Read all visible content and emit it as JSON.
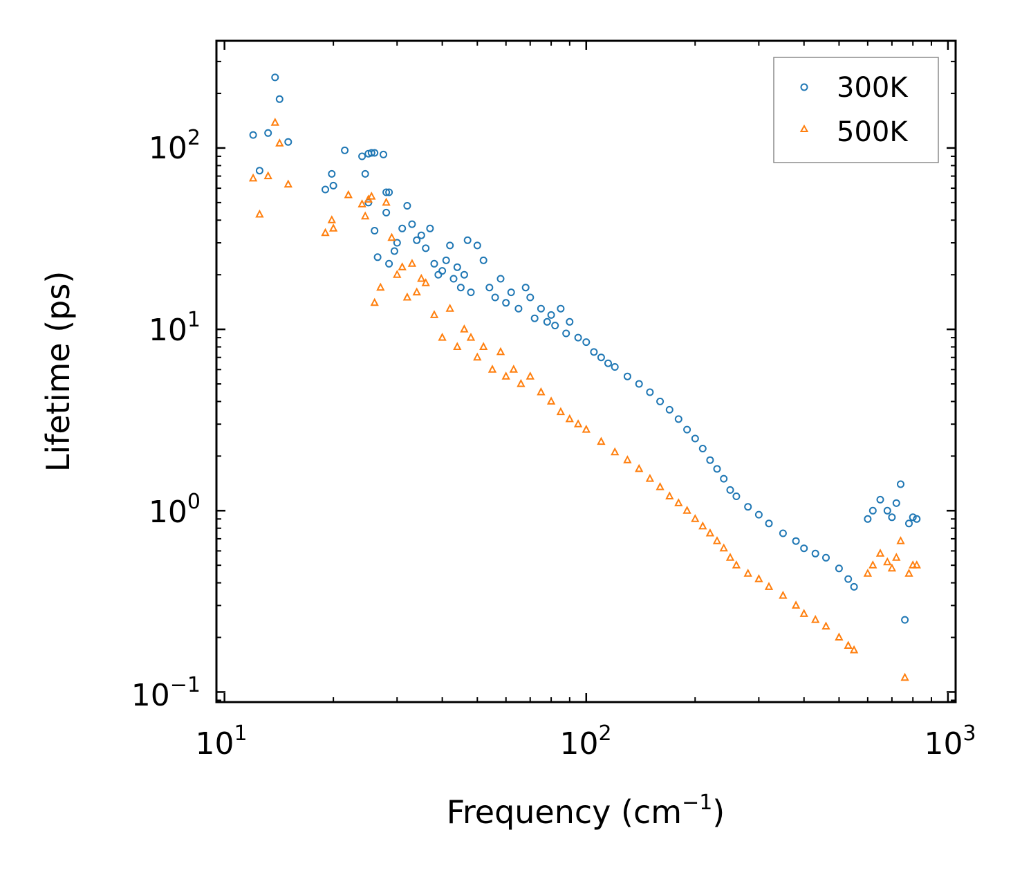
{
  "chart_data": {
    "type": "scatter",
    "title": "",
    "xlabel": "Frequency (cm",
    "xlabel_sup": "−1",
    "xlabel_end": ")",
    "ylabel": "Lifetime (ps)",
    "xscale": "log",
    "yscale": "log",
    "xlim": [
      9.5,
      1050
    ],
    "ylim": [
      0.088,
      390
    ],
    "xticks": [
      {
        "value": 10,
        "base": "10",
        "exp": "1"
      },
      {
        "value": 100,
        "base": "10",
        "exp": "2"
      },
      {
        "value": 1000,
        "base": "10",
        "exp": "3"
      }
    ],
    "yticks": [
      {
        "value": 0.1,
        "base": "10",
        "exp": "−1"
      },
      {
        "value": 1,
        "base": "10",
        "exp": "0"
      },
      {
        "value": 10,
        "base": "10",
        "exp": "1"
      },
      {
        "value": 100,
        "base": "10",
        "exp": "2"
      }
    ],
    "legend_position": "top-right",
    "series": [
      {
        "name": "300K",
        "marker": "circle",
        "color": "#1f77b4",
        "points": [
          [
            12.0,
            118
          ],
          [
            12.5,
            75
          ],
          [
            13.2,
            121
          ],
          [
            13.8,
            245
          ],
          [
            14.2,
            186
          ],
          [
            15.0,
            108
          ],
          [
            19.0,
            59
          ],
          [
            19.8,
            72
          ],
          [
            20.0,
            62
          ],
          [
            21.5,
            97
          ],
          [
            24.0,
            90
          ],
          [
            24.5,
            72
          ],
          [
            25.0,
            93
          ],
          [
            25.5,
            94
          ],
          [
            26.0,
            94
          ],
          [
            27.5,
            92
          ],
          [
            28.0,
            57
          ],
          [
            28.5,
            57
          ],
          [
            25.0,
            50
          ],
          [
            26.0,
            35
          ],
          [
            26.5,
            25
          ],
          [
            28.0,
            44
          ],
          [
            28.5,
            23
          ],
          [
            29.5,
            27
          ],
          [
            30.0,
            30
          ],
          [
            31.0,
            36
          ],
          [
            32.0,
            48
          ],
          [
            33.0,
            38
          ],
          [
            34.0,
            31
          ],
          [
            35.0,
            33
          ],
          [
            36.0,
            28
          ],
          [
            37.0,
            36
          ],
          [
            38.0,
            23
          ],
          [
            39.0,
            20
          ],
          [
            40.0,
            21
          ],
          [
            41.0,
            24
          ],
          [
            42.0,
            29
          ],
          [
            43.0,
            19
          ],
          [
            44.0,
            22
          ],
          [
            45.0,
            17
          ],
          [
            46.0,
            20
          ],
          [
            47.0,
            31
          ],
          [
            48.0,
            16
          ],
          [
            50.0,
            29
          ],
          [
            52.0,
            24
          ],
          [
            54.0,
            17
          ],
          [
            56.0,
            15
          ],
          [
            58.0,
            19
          ],
          [
            60.0,
            14
          ],
          [
            62.0,
            16
          ],
          [
            65.0,
            13
          ],
          [
            68.0,
            17
          ],
          [
            70.0,
            15
          ],
          [
            72.0,
            11.5
          ],
          [
            75.0,
            13
          ],
          [
            78.0,
            11
          ],
          [
            80.0,
            12
          ],
          [
            82.0,
            10.5
          ],
          [
            85.0,
            13
          ],
          [
            88.0,
            9.5
          ],
          [
            90.0,
            11
          ],
          [
            95.0,
            9
          ],
          [
            100.0,
            8.5
          ],
          [
            105.0,
            7.5
          ],
          [
            110.0,
            7
          ],
          [
            115.0,
            6.5
          ],
          [
            120.0,
            6.2
          ],
          [
            130.0,
            5.5
          ],
          [
            140.0,
            5
          ],
          [
            150.0,
            4.5
          ],
          [
            160.0,
            4.0
          ],
          [
            170.0,
            3.6
          ],
          [
            180.0,
            3.2
          ],
          [
            190.0,
            2.8
          ],
          [
            200.0,
            2.5
          ],
          [
            210.0,
            2.2
          ],
          [
            220.0,
            1.9
          ],
          [
            230.0,
            1.7
          ],
          [
            240.0,
            1.5
          ],
          [
            250.0,
            1.3
          ],
          [
            260.0,
            1.2
          ],
          [
            280.0,
            1.05
          ],
          [
            300.0,
            0.95
          ],
          [
            320.0,
            0.85
          ],
          [
            350.0,
            0.75
          ],
          [
            380.0,
            0.68
          ],
          [
            400.0,
            0.62
          ],
          [
            430.0,
            0.58
          ],
          [
            460.0,
            0.55
          ],
          [
            500.0,
            0.48
          ],
          [
            530.0,
            0.42
          ],
          [
            550.0,
            0.38
          ],
          [
            600.0,
            0.9
          ],
          [
            620.0,
            1.0
          ],
          [
            650.0,
            1.15
          ],
          [
            680.0,
            1.0
          ],
          [
            700.0,
            0.92
          ],
          [
            720.0,
            1.1
          ],
          [
            740.0,
            1.4
          ],
          [
            760.0,
            0.25
          ],
          [
            780.0,
            0.85
          ],
          [
            800.0,
            0.92
          ],
          [
            820.0,
            0.9
          ]
        ]
      },
      {
        "name": "500K",
        "marker": "triangle",
        "color": "#ff7f0e",
        "points": [
          [
            12.0,
            68
          ],
          [
            12.5,
            43
          ],
          [
            13.2,
            70
          ],
          [
            13.8,
            138
          ],
          [
            14.2,
            106
          ],
          [
            15.0,
            63
          ],
          [
            19.0,
            34
          ],
          [
            19.8,
            40
          ],
          [
            20.0,
            36
          ],
          [
            22.0,
            55
          ],
          [
            24.0,
            49
          ],
          [
            24.5,
            42
          ],
          [
            25.0,
            52
          ],
          [
            25.5,
            54
          ],
          [
            26.0,
            14
          ],
          [
            27.0,
            17
          ],
          [
            28.0,
            50
          ],
          [
            29.0,
            32
          ],
          [
            30.0,
            20
          ],
          [
            31.0,
            22
          ],
          [
            32.0,
            15
          ],
          [
            33.0,
            23
          ],
          [
            34.0,
            16
          ],
          [
            35.0,
            19
          ],
          [
            36.0,
            18
          ],
          [
            38.0,
            12
          ],
          [
            40.0,
            9
          ],
          [
            42.0,
            13
          ],
          [
            44.0,
            8
          ],
          [
            46.0,
            10
          ],
          [
            48.0,
            9
          ],
          [
            50.0,
            7
          ],
          [
            52.0,
            8
          ],
          [
            55.0,
            6
          ],
          [
            58.0,
            7.5
          ],
          [
            60.0,
            5.5
          ],
          [
            63.0,
            6
          ],
          [
            66.0,
            5
          ],
          [
            70.0,
            5.5
          ],
          [
            75.0,
            4.5
          ],
          [
            80.0,
            4
          ],
          [
            85.0,
            3.5
          ],
          [
            90.0,
            3.2
          ],
          [
            95.0,
            3.0
          ],
          [
            100.0,
            2.8
          ],
          [
            110.0,
            2.4
          ],
          [
            120.0,
            2.1
          ],
          [
            130.0,
            1.9
          ],
          [
            140.0,
            1.7
          ],
          [
            150.0,
            1.5
          ],
          [
            160.0,
            1.35
          ],
          [
            170.0,
            1.2
          ],
          [
            180.0,
            1.1
          ],
          [
            190.0,
            1.0
          ],
          [
            200.0,
            0.9
          ],
          [
            210.0,
            0.82
          ],
          [
            220.0,
            0.75
          ],
          [
            230.0,
            0.68
          ],
          [
            240.0,
            0.62
          ],
          [
            250.0,
            0.55
          ],
          [
            260.0,
            0.5
          ],
          [
            280.0,
            0.45
          ],
          [
            300.0,
            0.42
          ],
          [
            320.0,
            0.38
          ],
          [
            350.0,
            0.34
          ],
          [
            380.0,
            0.3
          ],
          [
            400.0,
            0.27
          ],
          [
            430.0,
            0.25
          ],
          [
            460.0,
            0.23
          ],
          [
            500.0,
            0.2
          ],
          [
            530.0,
            0.18
          ],
          [
            550.0,
            0.17
          ],
          [
            600.0,
            0.45
          ],
          [
            620.0,
            0.5
          ],
          [
            650.0,
            0.58
          ],
          [
            680.0,
            0.52
          ],
          [
            700.0,
            0.48
          ],
          [
            720.0,
            0.55
          ],
          [
            740.0,
            0.68
          ],
          [
            760.0,
            0.12
          ],
          [
            780.0,
            0.45
          ],
          [
            800.0,
            0.5
          ],
          [
            820.0,
            0.5
          ]
        ]
      }
    ]
  }
}
